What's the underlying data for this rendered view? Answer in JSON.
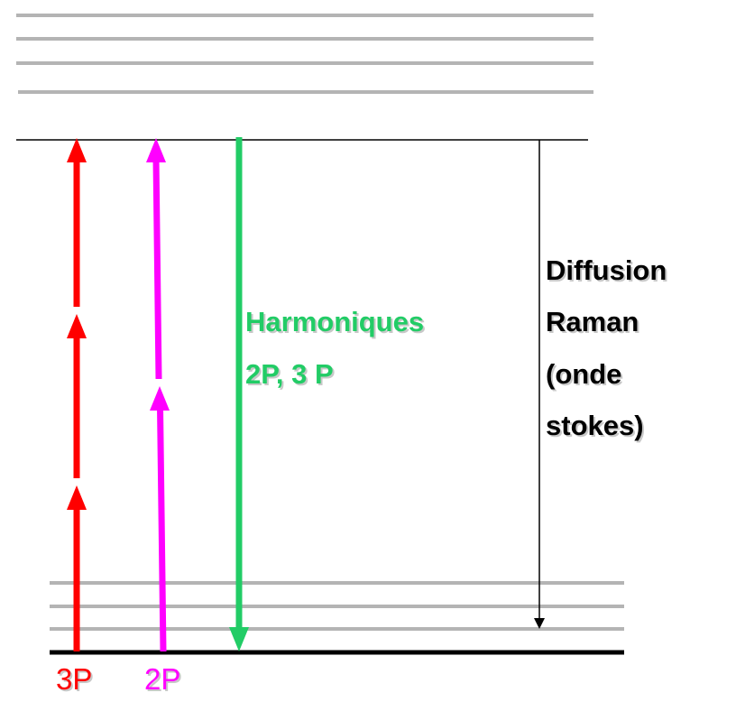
{
  "harmonics": {
    "lines": [
      "Harmoniques",
      "2P, 3 P"
    ]
  },
  "raman": {
    "lines": [
      "Diffusion",
      "Raman",
      "(onde",
      "stokes)"
    ]
  },
  "labels": {
    "three_photon": "3P",
    "two_photon": "2P"
  }
}
